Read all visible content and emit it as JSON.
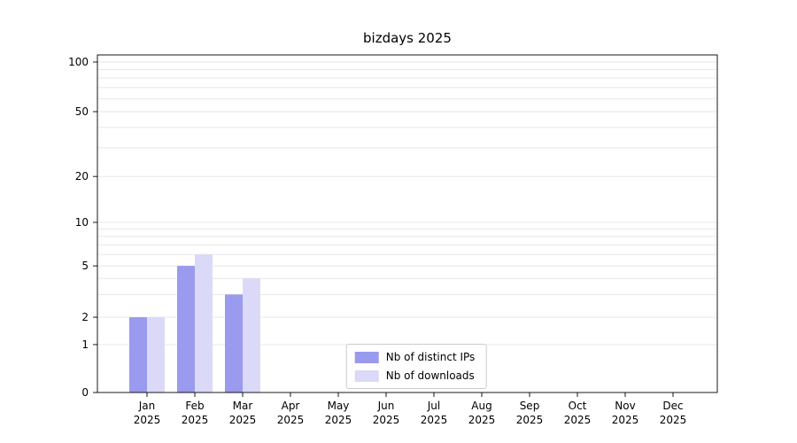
{
  "chart_data": {
    "type": "bar",
    "title": "bizdays 2025",
    "categories": [
      "Jan",
      "Feb",
      "Mar",
      "Apr",
      "May",
      "Jun",
      "Jul",
      "Aug",
      "Sep",
      "Oct",
      "Nov",
      "Dec"
    ],
    "year_label": "2025",
    "series": [
      {
        "name": "Nb of distinct IPs",
        "color": "#9a9aee",
        "values": [
          2,
          5,
          3,
          0,
          0,
          0,
          0,
          0,
          0,
          0,
          0,
          0
        ]
      },
      {
        "name": "Nb of downloads",
        "color": "#dadaf8",
        "values": [
          2,
          6,
          4,
          0,
          0,
          0,
          0,
          0,
          0,
          0,
          0,
          0
        ]
      }
    ],
    "y_ticks": [
      0,
      1,
      2,
      5,
      10,
      20,
      50,
      100
    ],
    "y_scale": "log-like",
    "ylim": [
      0,
      110
    ],
    "grid": "horizontal-minor-log",
    "legend_position": "bottom-center-inside"
  },
  "colors": {
    "background": "#ffffff",
    "grid": "#e4e4e4",
    "axis": "#000000",
    "tick_label": "#000000",
    "legend_border": "#cccccc"
  }
}
